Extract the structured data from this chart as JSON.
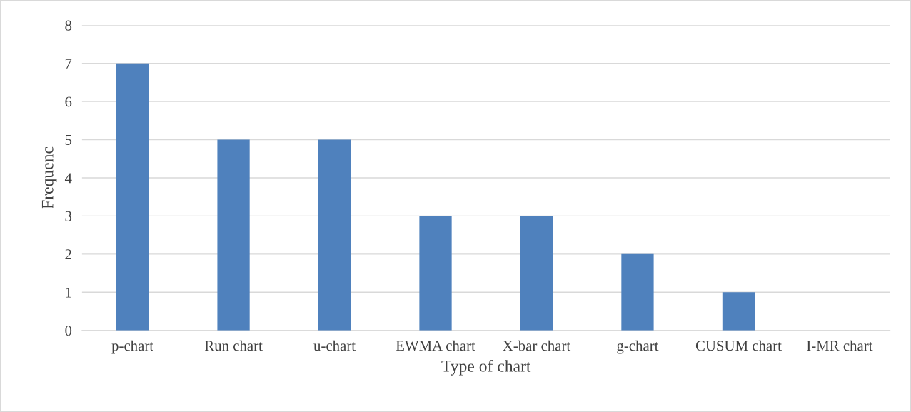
{
  "chart_data": {
    "type": "bar",
    "xlabel": "Type of chart",
    "ylabel": "Frequenc",
    "categories": [
      "p-chart",
      "Run chart",
      "u-chart",
      "EWMA chart",
      "X-bar chart",
      "g-chart",
      "CUSUM chart",
      "I-MR chart"
    ],
    "values": [
      7,
      5,
      5,
      3,
      3,
      2,
      1,
      0
    ],
    "color": "#4f81bd",
    "ylim": [
      0,
      8
    ],
    "yticks": [
      0,
      1,
      2,
      3,
      4,
      5,
      6,
      7,
      8
    ],
    "grid": "y",
    "legend": false
  }
}
